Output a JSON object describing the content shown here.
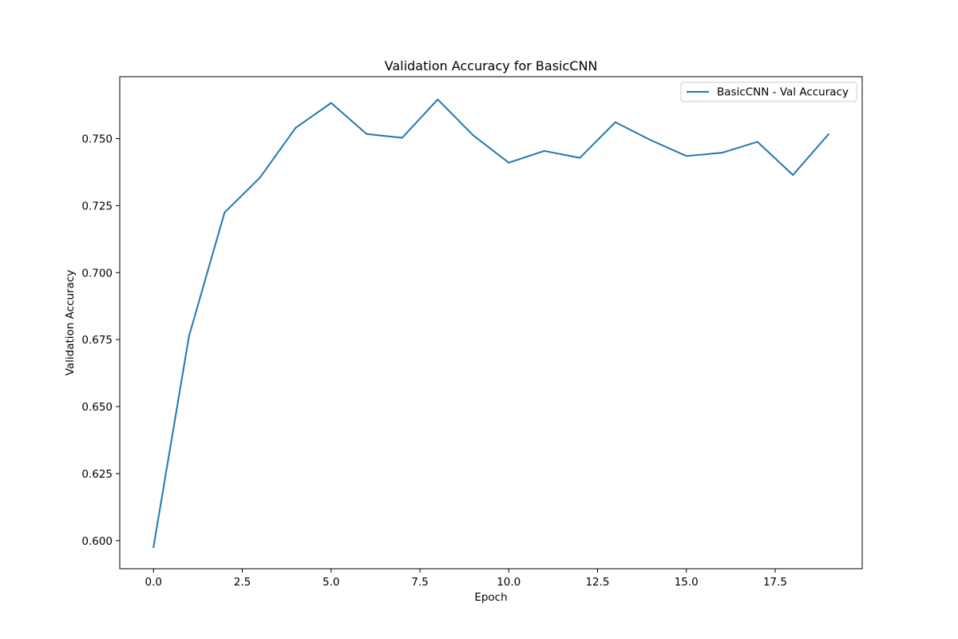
{
  "chart_data": {
    "type": "line",
    "title": "Validation Accuracy for BasicCNN",
    "xlabel": "Epoch",
    "ylabel": "Validation Accuracy",
    "xlim": [
      -0.95,
      19.95
    ],
    "ylim": [
      0.5895,
      0.7731
    ],
    "x_ticks": [
      0.0,
      2.5,
      5.0,
      7.5,
      10.0,
      12.5,
      15.0,
      17.5
    ],
    "x_tick_labels": [
      "0.0",
      "2.5",
      "5.0",
      "7.5",
      "10.0",
      "12.5",
      "15.0",
      "17.5"
    ],
    "y_ticks": [
      0.6,
      0.625,
      0.65,
      0.675,
      0.7,
      0.725,
      0.75
    ],
    "y_tick_labels": [
      "0.600",
      "0.625",
      "0.650",
      "0.675",
      "0.700",
      "0.725",
      "0.750"
    ],
    "grid": false,
    "legend_position": "top-right",
    "line_color": "#1f77b4",
    "x": [
      0,
      1,
      2,
      3,
      4,
      5,
      6,
      7,
      8,
      9,
      10,
      11,
      12,
      13,
      14,
      15,
      16,
      17,
      18,
      19
    ],
    "series": [
      {
        "name": "BasicCNN - Val Accuracy",
        "values": [
          0.5976,
          0.6763,
          0.7224,
          0.7355,
          0.754,
          0.7633,
          0.7517,
          0.7503,
          0.7646,
          0.7512,
          0.741,
          0.7454,
          0.7428,
          0.7561,
          0.7494,
          0.7435,
          0.7447,
          0.7488,
          0.7364,
          0.7516
        ]
      }
    ]
  }
}
